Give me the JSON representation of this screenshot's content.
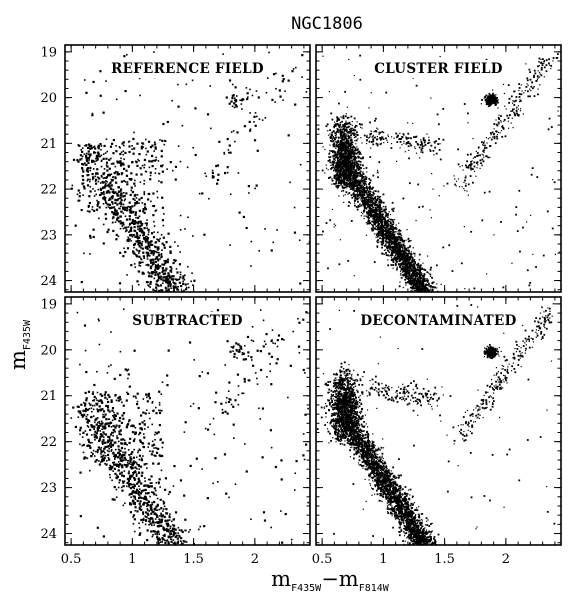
{
  "chart_data": {
    "type": "scatter",
    "title": "NGC1806",
    "xlabel": {
      "main": "m",
      "sub1": "F435W",
      "dash": "−",
      "main2": "m",
      "sub2": "F814W"
    },
    "ylabel": {
      "main": "m",
      "sub": "F435W"
    },
    "xlim": [
      0.45,
      2.45
    ],
    "ylim": [
      24.25,
      18.85
    ],
    "y_inverted": true,
    "x_ticks": [
      0.5,
      1,
      1.5,
      2
    ],
    "x_tick_labels": [
      "0.5",
      "1",
      "1.5",
      "2"
    ],
    "y_ticks": [
      19,
      20,
      21,
      22,
      23,
      24
    ],
    "y_tick_labels": [
      "19",
      "20",
      "21",
      "22",
      "23",
      "24"
    ],
    "panels": [
      {
        "label": "REFERENCE FIELD",
        "position": "top-left",
        "features": {
          "main_sequence": true,
          "main_sequence_density": "sparse",
          "red_clump": [
            1.88,
            20.05
          ],
          "red_clump_density": "sparse",
          "msto_blob": false,
          "field_stars": "moderate"
        }
      },
      {
        "label": "CLUSTER FIELD",
        "position": "top-right",
        "features": {
          "main_sequence": true,
          "main_sequence_density": "dense",
          "red_clump": [
            1.88,
            20.05
          ],
          "red_clump_density": "dense",
          "msto_blob": true,
          "field_stars": "moderate"
        }
      },
      {
        "label": "SUBTRACTED",
        "position": "bottom-left",
        "features": {
          "main_sequence": true,
          "main_sequence_density": "sparse",
          "red_clump": [
            1.88,
            20.05
          ],
          "red_clump_density": "sparse",
          "msto_blob": false,
          "field_stars": "moderate"
        }
      },
      {
        "label": "DECONTAMINATED",
        "position": "bottom-right",
        "features": {
          "main_sequence": true,
          "main_sequence_density": "dense",
          "red_clump": [
            1.88,
            20.05
          ],
          "red_clump_density": "dense",
          "msto_blob": true,
          "field_stars": "sparse"
        }
      }
    ],
    "grid": false,
    "legend": "none",
    "marker_color": "#000000"
  }
}
